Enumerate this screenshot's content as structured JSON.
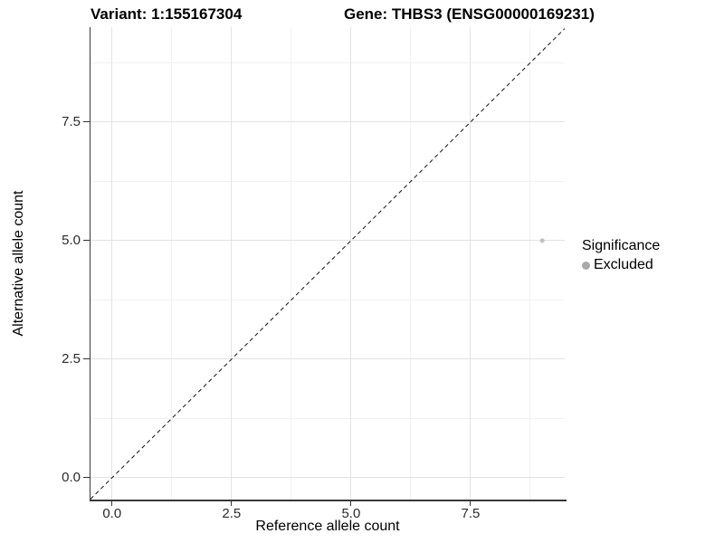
{
  "chart_data": {
    "type": "scatter",
    "titles": {
      "variant": "Variant: 1:155167304",
      "gene": "Gene: THBS3 (ENSG00000169231)"
    },
    "xlabel": "Reference allele count",
    "ylabel": "Alternative allele count",
    "xlim": [
      -0.45,
      9.47
    ],
    "ylim": [
      -0.46,
      9.5
    ],
    "x_major_ticks": [
      0,
      2.5,
      5,
      7.5
    ],
    "x_tick_labels": [
      "0.0",
      "2.5",
      "5.0",
      "7.5"
    ],
    "x_minor_ticks": [
      1.25,
      3.75,
      6.25,
      8.75
    ],
    "y_major_ticks": [
      0,
      2.5,
      5,
      7.5
    ],
    "y_tick_labels": [
      "0.0",
      "2.5",
      "5.0",
      "7.5"
    ],
    "y_minor_ticks": [
      1.25,
      3.75,
      6.25,
      8.75
    ],
    "grid": true,
    "identity_line": {
      "slope": 1,
      "intercept": 0,
      "style": "dashed"
    },
    "points": [
      {
        "x": 9,
        "y": 5,
        "series": "Excluded"
      }
    ],
    "point_radius": 2.6,
    "legend": {
      "title": "Significance",
      "position": "right",
      "items": [
        {
          "label": "Excluded",
          "color": "#a9a9a9"
        }
      ]
    },
    "colors": {
      "point_excluded": "#c3c3c3",
      "legend_dot": "#a9a9a9",
      "grid_major": "#e3e3e3",
      "grid_minor": "#f1f1f1",
      "axis_line": "#383838",
      "dashed_line": "#111111",
      "tick_label": "#2b2b2b"
    }
  }
}
